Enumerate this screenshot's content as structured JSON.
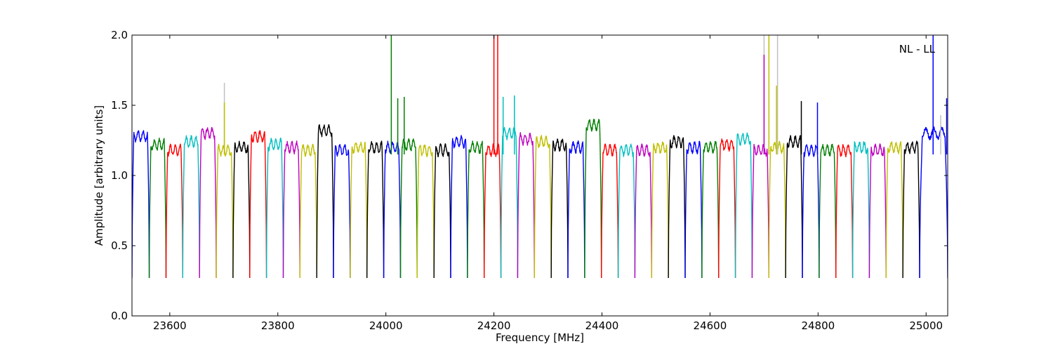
{
  "chart_data": {
    "type": "line",
    "title": "",
    "annotation": "NL - LL",
    "xlabel": "Frequency [MHz]",
    "ylabel": "Amplitude [arbitrary units]",
    "xlim": [
      23530,
      25040
    ],
    "ylim": [
      0.0,
      2.0
    ],
    "grid": false,
    "x_ticks": [
      23600,
      23800,
      24000,
      24200,
      24400,
      24600,
      24800,
      25000
    ],
    "x_tick_labels": [
      "23600",
      "23800",
      "24000",
      "24200",
      "24400",
      "24600",
      "24800",
      "25000"
    ],
    "y_ticks": [
      0.0,
      0.5,
      1.0,
      1.5,
      2.0
    ],
    "y_tick_labels": [
      "0.0",
      "0.5",
      "1.0",
      "1.5",
      "2.0"
    ],
    "color_cycle": [
      "#0000ff",
      "#008000",
      "#ff0000",
      "#00bfbf",
      "#bf00bf",
      "#bfbf00",
      "#000000"
    ],
    "subbands": [
      {
        "start": 23530,
        "end": 23562,
        "color": "#0000ff",
        "level": 1.28
      },
      {
        "start": 23562,
        "end": 23593,
        "color": "#008000",
        "level": 1.22
      },
      {
        "start": 23593,
        "end": 23624,
        "color": "#ff0000",
        "level": 1.18
      },
      {
        "start": 23624,
        "end": 23655,
        "color": "#00bfbf",
        "level": 1.24
      },
      {
        "start": 23655,
        "end": 23686,
        "color": "#bf00bf",
        "level": 1.3
      },
      {
        "start": 23686,
        "end": 23717,
        "color": "#bfbf00",
        "level": 1.18
      },
      {
        "start": 23717,
        "end": 23748,
        "color": "#000000",
        "level": 1.2
      },
      {
        "start": 23748,
        "end": 23779,
        "color": "#ff0000",
        "level": 1.28
      },
      {
        "start": 23779,
        "end": 23810,
        "color": "#00bfbf",
        "level": 1.22
      },
      {
        "start": 23810,
        "end": 23841,
        "color": "#bf00bf",
        "level": 1.2
      },
      {
        "start": 23841,
        "end": 23872,
        "color": "#bfbf00",
        "level": 1.18
      },
      {
        "start": 23872,
        "end": 23903,
        "color": "#000000",
        "level": 1.32
      },
      {
        "start": 23903,
        "end": 23934,
        "color": "#0000ff",
        "level": 1.18
      },
      {
        "start": 23934,
        "end": 23965,
        "color": "#bfbf00",
        "level": 1.2
      },
      {
        "start": 23965,
        "end": 23996,
        "color": "#000000",
        "level": 1.2
      },
      {
        "start": 23996,
        "end": 24027,
        "color": "#0000ff",
        "level": 1.2
      },
      {
        "start": 24027,
        "end": 24058,
        "color": "#008000",
        "level": 1.22
      },
      {
        "start": 24058,
        "end": 24089,
        "color": "#bfbf00",
        "level": 1.18
      },
      {
        "start": 24089,
        "end": 24120,
        "color": "#000000",
        "level": 1.18
      },
      {
        "start": 24120,
        "end": 24151,
        "color": "#0000ff",
        "level": 1.24
      },
      {
        "start": 24151,
        "end": 24182,
        "color": "#008000",
        "level": 1.2
      },
      {
        "start": 24182,
        "end": 24213,
        "color": "#ff0000",
        "level": 1.18
      },
      {
        "start": 24213,
        "end": 24244,
        "color": "#00bfbf",
        "level": 1.3
      },
      {
        "start": 24244,
        "end": 24275,
        "color": "#bf00bf",
        "level": 1.26
      },
      {
        "start": 24275,
        "end": 24306,
        "color": "#bfbf00",
        "level": 1.24
      },
      {
        "start": 24306,
        "end": 24337,
        "color": "#000000",
        "level": 1.22
      },
      {
        "start": 24337,
        "end": 24368,
        "color": "#0000ff",
        "level": 1.2
      },
      {
        "start": 24368,
        "end": 24399,
        "color": "#008000",
        "level": 1.36
      },
      {
        "start": 24399,
        "end": 24430,
        "color": "#ff0000",
        "level": 1.18
      },
      {
        "start": 24430,
        "end": 24461,
        "color": "#00bfbf",
        "level": 1.18
      },
      {
        "start": 24461,
        "end": 24492,
        "color": "#bf00bf",
        "level": 1.18
      },
      {
        "start": 24492,
        "end": 24523,
        "color": "#bfbf00",
        "level": 1.2
      },
      {
        "start": 24523,
        "end": 24554,
        "color": "#000000",
        "level": 1.24
      },
      {
        "start": 24554,
        "end": 24585,
        "color": "#0000ff",
        "level": 1.2
      },
      {
        "start": 24585,
        "end": 24616,
        "color": "#008000",
        "level": 1.2
      },
      {
        "start": 24616,
        "end": 24647,
        "color": "#ff0000",
        "level": 1.22
      },
      {
        "start": 24647,
        "end": 24678,
        "color": "#00bfbf",
        "level": 1.26
      },
      {
        "start": 24678,
        "end": 24709,
        "color": "#bf00bf",
        "level": 1.18
      },
      {
        "start": 24709,
        "end": 24740,
        "color": "#bfbf00",
        "level": 1.2
      },
      {
        "start": 24740,
        "end": 24771,
        "color": "#000000",
        "level": 1.24
      },
      {
        "start": 24771,
        "end": 24802,
        "color": "#0000ff",
        "level": 1.18
      },
      {
        "start": 24802,
        "end": 24833,
        "color": "#008000",
        "level": 1.18
      },
      {
        "start": 24833,
        "end": 24864,
        "color": "#ff0000",
        "level": 1.18
      },
      {
        "start": 24864,
        "end": 24895,
        "color": "#00bfbf",
        "level": 1.2
      },
      {
        "start": 24895,
        "end": 24926,
        "color": "#bf00bf",
        "level": 1.18
      },
      {
        "start": 24926,
        "end": 24957,
        "color": "#bfbf00",
        "level": 1.2
      },
      {
        "start": 24957,
        "end": 24988,
        "color": "#000000",
        "level": 1.2
      },
      {
        "start": 24988,
        "end": 25040,
        "color": "#0000ff",
        "level": 1.3
      }
    ],
    "spikes": [
      {
        "x": 23701,
        "top": 1.66,
        "color": "#c0c0c0"
      },
      {
        "x": 23701,
        "top": 1.52,
        "color": "#bfbf00"
      },
      {
        "x": 24010,
        "top": 2.0,
        "color": "#008000"
      },
      {
        "x": 24022,
        "top": 1.55,
        "color": "#008000"
      },
      {
        "x": 24034,
        "top": 1.56,
        "color": "#008000"
      },
      {
        "x": 24200,
        "top": 2.0,
        "color": "#ff0000"
      },
      {
        "x": 24207,
        "top": 2.0,
        "color": "#ff0000"
      },
      {
        "x": 24217,
        "top": 1.56,
        "color": "#00bfbf"
      },
      {
        "x": 24238,
        "top": 1.57,
        "color": "#00bfbf"
      },
      {
        "x": 24700,
        "top": 2.0,
        "color": "#c0c0c0"
      },
      {
        "x": 24700,
        "top": 1.86,
        "color": "#bf00bf"
      },
      {
        "x": 24709,
        "top": 2.0,
        "color": "#bfbf00"
      },
      {
        "x": 24725,
        "top": 2.0,
        "color": "#c0c0c0"
      },
      {
        "x": 24723,
        "top": 1.64,
        "color": "#bfbf00"
      },
      {
        "x": 24769,
        "top": 1.53,
        "color": "#000000"
      },
      {
        "x": 24799,
        "top": 1.52,
        "color": "#0000ff"
      },
      {
        "x": 25013,
        "top": 2.0,
        "color": "#0000ff"
      },
      {
        "x": 25027,
        "top": 1.43,
        "color": "#c0c0c0"
      },
      {
        "x": 25038,
        "top": 1.55,
        "color": "#0000ff"
      }
    ]
  }
}
